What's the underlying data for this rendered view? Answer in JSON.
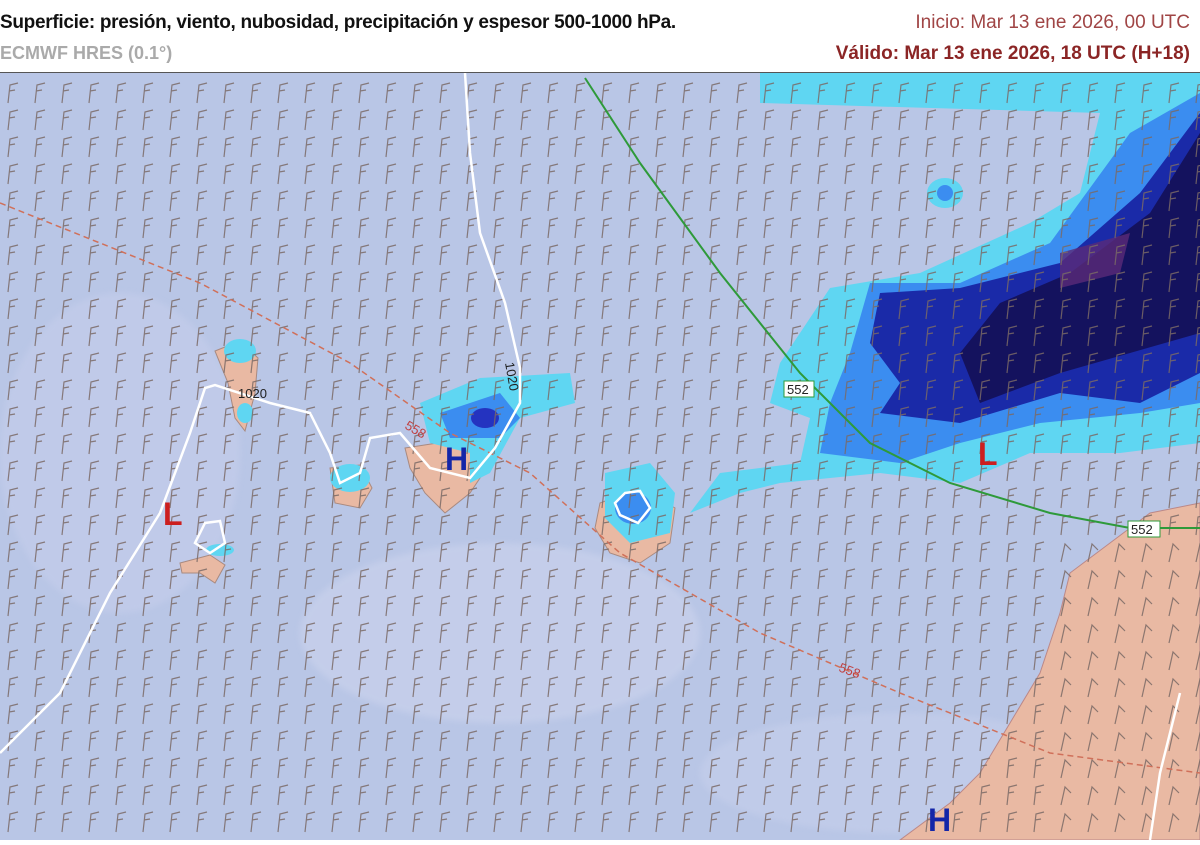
{
  "header": {
    "title": "Superficie: presión, viento, nubosidad, precipitación y espesor 500-1000 hPa.",
    "model": "ECMWF HRES (0.1°)",
    "init": "Inicio: Mar 13 ene 2026, 00 UTC",
    "valid": "Válido: Mar 13 ene 2026, 18 UTC (H+18)"
  },
  "map": {
    "colors": {
      "sea": "#b9c6e6",
      "land": "#e9b9a3",
      "precip_light": "#5fd6f2",
      "precip_mid": "#3b8df0",
      "precip_heavy": "#1a2aa8",
      "precip_extreme": "#14125e",
      "isobar": "#ffffff",
      "thickness_552": "#2e9a3a",
      "thickness_558": "#d0705a",
      "low": "#cc1f1f",
      "high": "#1426a8",
      "wind_barb": "#7a6a66"
    },
    "isobar_labels": [
      "1020",
      "1020"
    ],
    "thickness_labels": [
      "558",
      "558",
      "552",
      "552"
    ],
    "pressure_centers": [
      {
        "type": "L",
        "label": "L"
      },
      {
        "type": "H",
        "label": "H"
      },
      {
        "type": "L",
        "label": "L"
      },
      {
        "type": "H",
        "label": "H"
      }
    ]
  }
}
